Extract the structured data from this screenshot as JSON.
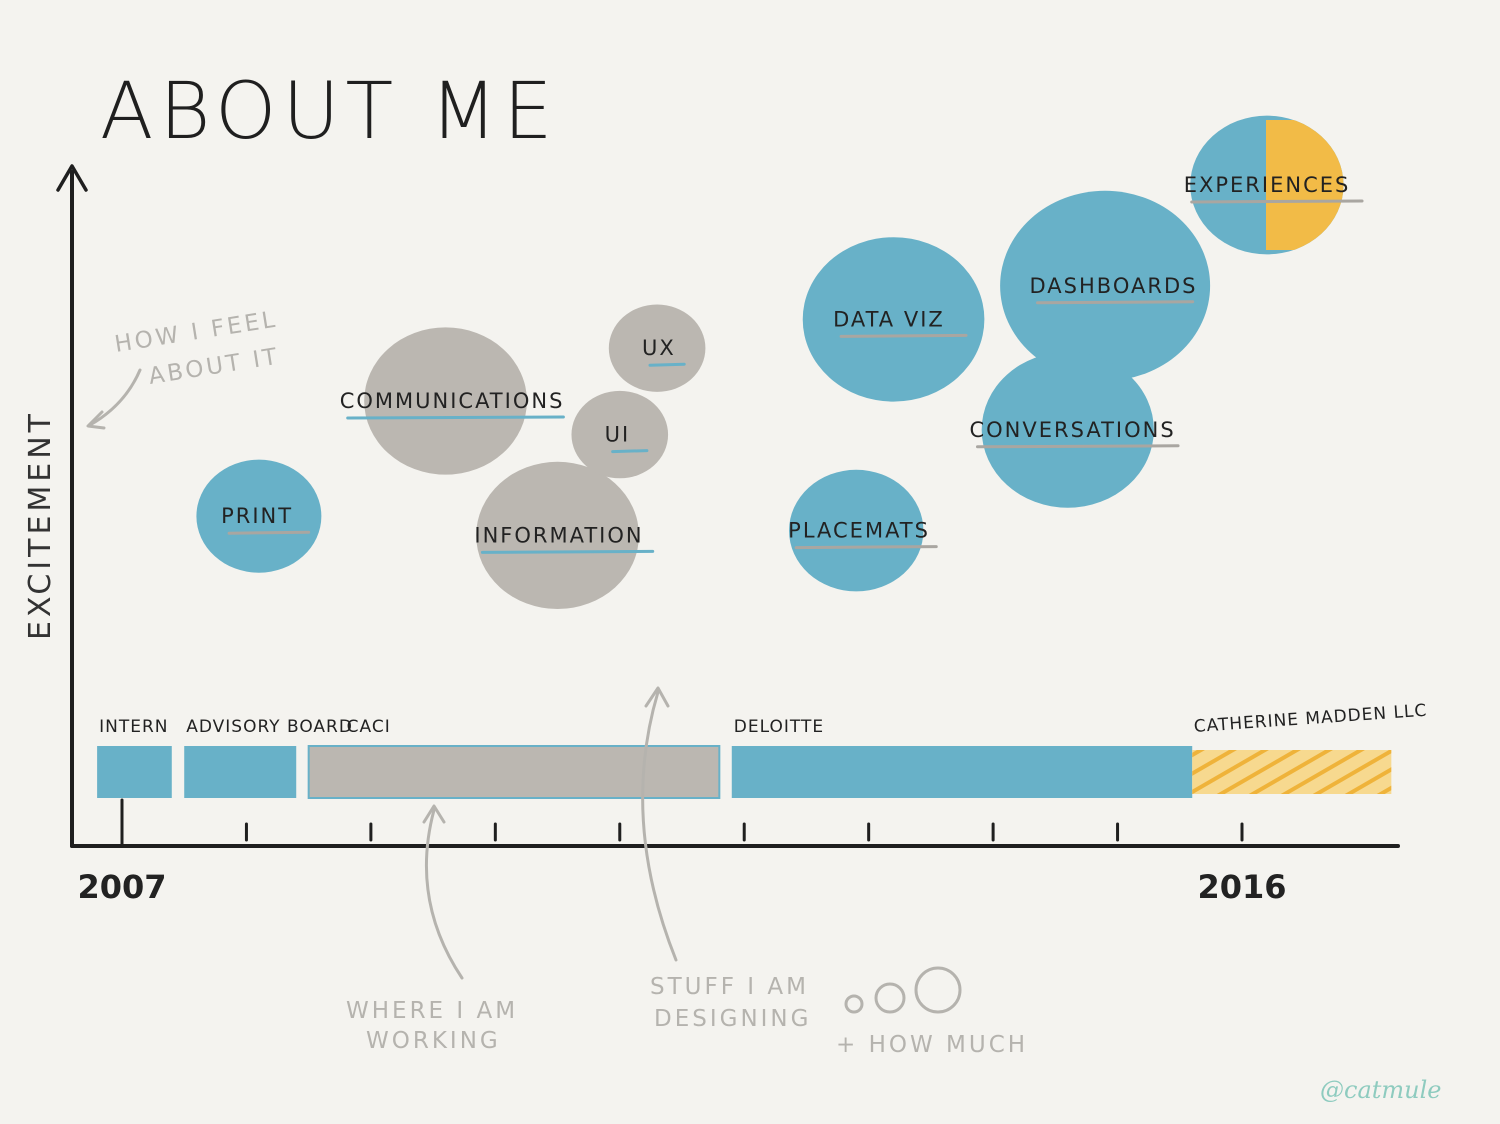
{
  "title": "ABOUT ME",
  "handle": "@catmule",
  "colors": {
    "background": "#f4f3ef",
    "blue": "#68b1c8",
    "gray": "#bbb7b1",
    "orange": "#f2bb47",
    "ink": "#1f1f1f",
    "note": "#b5b3ae"
  },
  "notes": {
    "how_i_feel_line1": "HOW I FEEL",
    "how_i_feel_line2": "ABOUT IT",
    "where_line1": "WHERE I AM",
    "where_line2": "WORKING",
    "stuff_line1": "STUFF I AM",
    "stuff_line2": "DESIGNING",
    "how_much": "+ HOW MUCH"
  },
  "chart_data": {
    "type": "scatter",
    "title": "ABOUT ME",
    "xlabel": "",
    "ylabel": "EXCITEMENT",
    "xlim": [
      2007,
      2017.3
    ],
    "ylim": [
      0,
      1
    ],
    "x_tick_labels": [
      "2007",
      "2016"
    ],
    "x_ticks": [
      2007,
      2008,
      2009,
      2010,
      2011,
      2012,
      2013,
      2014,
      2015,
      2016
    ],
    "work_periods": [
      {
        "name": "INTERN",
        "start": 2006.8,
        "end": 2007.4,
        "color": "#68b1c8"
      },
      {
        "name": "ADVISORY BOARD",
        "start": 2007.5,
        "end": 2008.4,
        "color": "#68b1c8"
      },
      {
        "name": "CACI",
        "start": 2008.5,
        "end": 2011.8,
        "color": "#bbb7b1"
      },
      {
        "name": "DELOITTE",
        "start": 2011.9,
        "end": 2015.6,
        "color": "#68b1c8"
      },
      {
        "name": "CATHERINE MADDEN LLC",
        "start": 2015.6,
        "end": 2017.2,
        "color": "#f2bb47",
        "hatched": true
      }
    ],
    "bubbles": [
      {
        "label": "PRINT",
        "x": 2008.1,
        "y": 0.31,
        "size": 0.35,
        "color": "#68b1c8"
      },
      {
        "label": "COMMUNICATIONS",
        "x": 2009.6,
        "y": 0.55,
        "size": 0.55,
        "color": "#bbb7b1"
      },
      {
        "label": "INFORMATION",
        "x": 2010.5,
        "y": 0.27,
        "size": 0.55,
        "color": "#bbb7b1"
      },
      {
        "label": "UI",
        "x": 2011.0,
        "y": 0.48,
        "size": 0.2,
        "color": "#bbb7b1"
      },
      {
        "label": "UX",
        "x": 2011.3,
        "y": 0.66,
        "size": 0.2,
        "color": "#bbb7b1"
      },
      {
        "label": "DATA VIZ",
        "x": 2013.2,
        "y": 0.72,
        "size": 0.65,
        "color": "#68b1c8"
      },
      {
        "label": "PLACEMATS",
        "x": 2012.9,
        "y": 0.28,
        "size": 0.4,
        "color": "#68b1c8"
      },
      {
        "label": "DASHBOARDS",
        "x": 2014.9,
        "y": 0.79,
        "size": 0.8,
        "color": "#68b1c8"
      },
      {
        "label": "CONVERSATIONS",
        "x": 2014.6,
        "y": 0.49,
        "size": 0.6,
        "color": "#68b1c8"
      },
      {
        "label": "EXPERIENCES",
        "x": 2016.2,
        "y": 1.0,
        "size": 0.5,
        "color": "#68b1c8",
        "accent": "#f2bb47"
      }
    ]
  }
}
